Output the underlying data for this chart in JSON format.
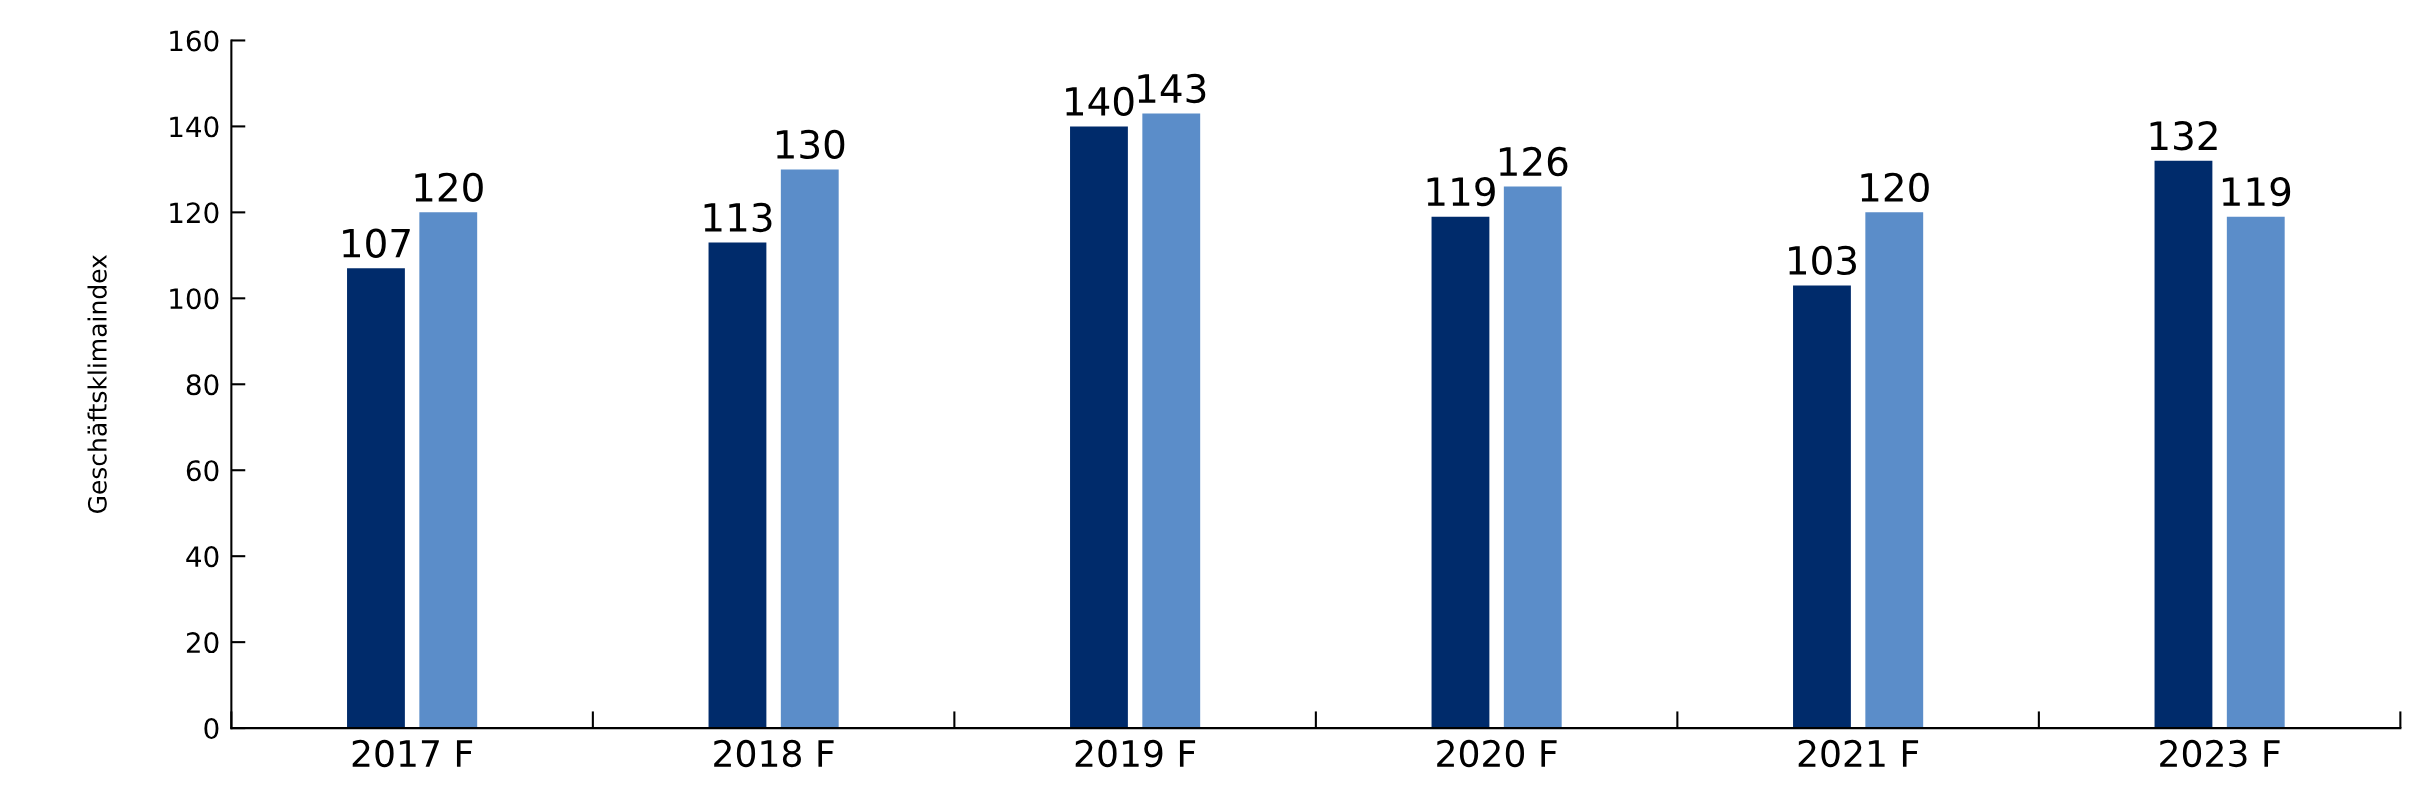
{
  "chart_data": {
    "type": "bar",
    "ylabel": "Geschäftsklimaindex",
    "categories": [
      "2017 F",
      "2018 F",
      "2019 F",
      "2020 F",
      "2021 F",
      "2023 F"
    ],
    "series": [
      {
        "color": "#002b6b",
        "values": [
          107,
          113,
          140,
          119,
          103,
          132
        ]
      },
      {
        "color": "#5b8dc9",
        "values": [
          120,
          130,
          143,
          126,
          120,
          119
        ]
      }
    ],
    "ylim": [
      0,
      160
    ],
    "yticks": [
      0,
      20,
      40,
      60,
      80,
      100,
      120,
      140,
      160
    ],
    "data_labels": true,
    "grid": false,
    "legend": false
  }
}
